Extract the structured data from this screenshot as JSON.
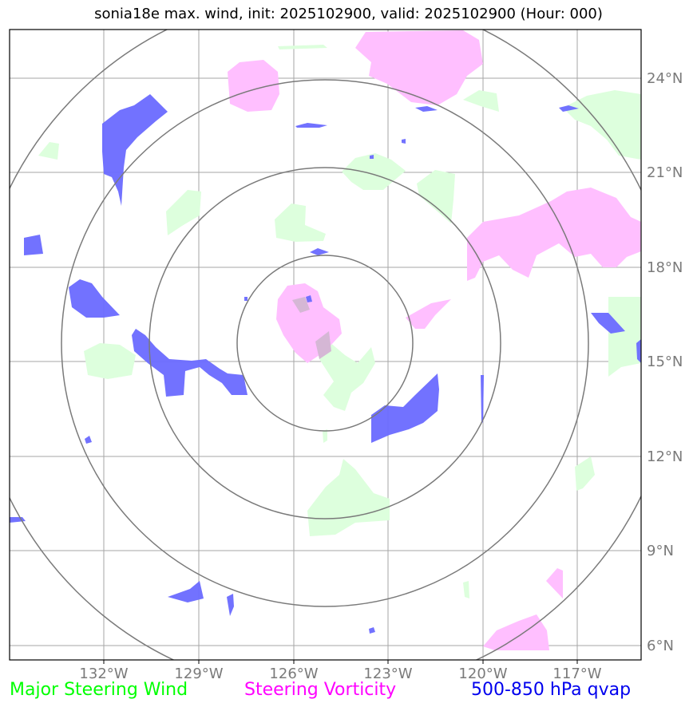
{
  "title": "sonia18e max. wind, init: 2025102900, valid: 2025102900 (Hour: 000)",
  "lon_ticks": [
    "132°W",
    "129°W",
    "126°W",
    "123°W",
    "120°W",
    "117°W"
  ],
  "lat_ticks": [
    "24°N",
    "21°N",
    "18°N",
    "15°N",
    "12°N",
    "9°N",
    "6°N"
  ],
  "legend": {
    "major_steering_wind": "Major Steering Wind",
    "steering_vorticity": "Steering Vorticity",
    "qvap": "500-850 hPa qvap"
  },
  "colors": {
    "wind": "#00ff00",
    "vorticity": "#ff00ff",
    "qvap": "#0000ee",
    "wind_fill": "#ddffdd",
    "vorticity_fill": "#ffbfff",
    "qvap_fill": "#6a6aff"
  },
  "range_rings": {
    "center_lon": -125.0,
    "center_lat": 15.5,
    "count": 4
  }
}
